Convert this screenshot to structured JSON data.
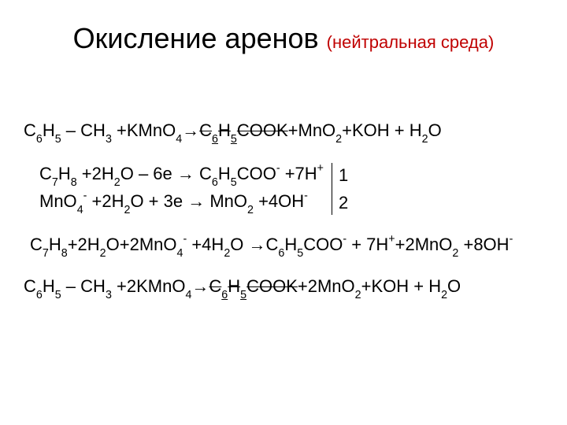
{
  "colors": {
    "text": "#000000",
    "accent": "#c00000",
    "background": "#ffffff"
  },
  "typography": {
    "title_fontsize_pt": 27,
    "title_sub_fontsize_pt": 17,
    "body_fontsize_pt": 17,
    "font_family": "Arial"
  },
  "title": {
    "main": "Окисление аренов",
    "sub": "(нейтральная среда)"
  },
  "equations": {
    "line1": {
      "lhs_a": "C",
      "lhs_a_sub": "6",
      "lhs_b": "H",
      "lhs_b_sub": "5",
      "dash": " – CH",
      "ch3_sub": "3",
      "plus_kmno": " +KMnO",
      "kmno_sub": "4",
      "arrow": "→",
      "prod1_a": "C",
      "prod1_a_sub": "6",
      "prod1_b": "H",
      "prod1_b_sub": "5",
      "prod1_c": "COOK",
      "plus_mno": "+MnO",
      "mno_sub": "2",
      "plus_koh_h2o_a": "+KOH + H",
      "h2o_sub": "2",
      "plus_koh_h2o_b": "O"
    },
    "half1": {
      "a": "C",
      "a_sub": "7",
      "b": "H",
      "b_sub": "8",
      "c": " +2H",
      "c_sub": "2",
      "d": "O – 6e → C",
      "d_sub": "6",
      "e": "H",
      "e_sub": "5",
      "f": "COO",
      "f_sup": "-",
      "g": "  +7H",
      "g_sup": "+",
      "coeff": "1"
    },
    "half2": {
      "a": "MnO",
      "a_sub": "4",
      "a_sup": "-",
      "b": " +2H",
      "b_sub": "2",
      "c": "O + 3e → MnO",
      "c_sub": "2",
      "d": " +4OH",
      "d_sup": "-",
      "coeff": "2"
    },
    "ionic": {
      "a": "C",
      "a_sub": "7",
      "b": "H",
      "b_sub": "8",
      "c": "+2H",
      "c_sub": "2",
      "d": "O+2MnO",
      "d_sub": "4",
      "d_sup": "-",
      "e": " +4H",
      "e_sub": "2",
      "f": "O →C",
      "f_sub": "6",
      "g": "H",
      "g_sub": "5",
      "h": "COO",
      "h_sup": "-",
      "i": " + 7H",
      "i_sup": "+",
      "j": "+2MnO",
      "j_sub": "2",
      "k": " +8OH",
      "k_sup": "-"
    },
    "final": {
      "a": "C",
      "a_sub": "6",
      "b": "H",
      "b_sub": "5",
      "c": " – CH",
      "c_sub": "3",
      "d": " +2KMnO",
      "d_sub": "4",
      "arrow": "→",
      "p1a": "C",
      "p1a_sub": "6",
      "p1b": "H",
      "p1b_sub": "5",
      "p1c": "COOK",
      "e": "+2MnO",
      "e_sub": "2",
      "f": "+KOH + H",
      "f_sub": "2",
      "g": "O"
    }
  }
}
